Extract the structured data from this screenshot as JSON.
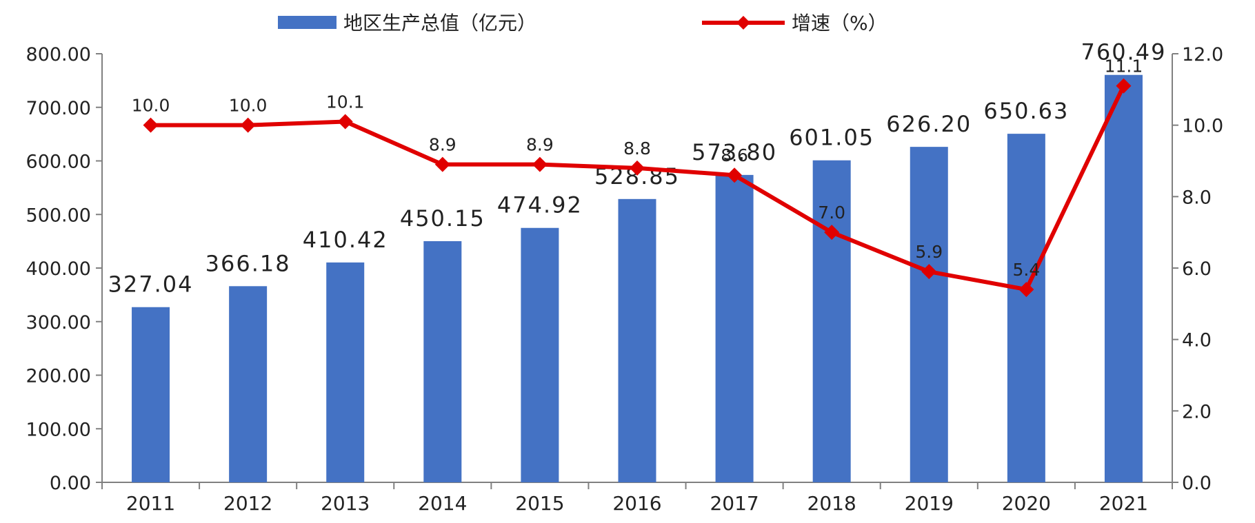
{
  "chart_data": {
    "type": "bar",
    "categories": [
      "2011",
      "2012",
      "2013",
      "2014",
      "2015",
      "2016",
      "2017",
      "2018",
      "2019",
      "2020",
      "2021"
    ],
    "series": [
      {
        "name": "地区生产总值（亿元）",
        "type": "bar",
        "axis": "left",
        "color": "#4472C4",
        "values": [
          327.04,
          366.18,
          410.42,
          450.15,
          474.92,
          528.85,
          573.8,
          601.05,
          626.2,
          650.63,
          760.49
        ],
        "labels": [
          "327.04",
          "366.18",
          "410.42",
          "450.15",
          "474.92",
          "528.85",
          "573.80",
          "601.05",
          "626.20",
          "650.63",
          "760.49"
        ]
      },
      {
        "name": "增速（%）",
        "type": "line",
        "axis": "right",
        "color": "#E00000",
        "marker": "diamond",
        "values": [
          10.0,
          10.0,
          10.1,
          8.9,
          8.9,
          8.8,
          8.6,
          7.0,
          5.9,
          5.4,
          11.1
        ],
        "labels": [
          "10.0",
          "10.0",
          "10.1",
          "8.9",
          "8.9",
          "8.8",
          "8.6",
          "7.0",
          "5.9",
          "5.4",
          "11.1"
        ]
      }
    ],
    "y_left": {
      "ylim": [
        0,
        800
      ],
      "ticks": [
        0,
        100,
        200,
        300,
        400,
        500,
        600,
        700,
        800
      ],
      "tick_labels": [
        "0.00",
        "100.00",
        "200.00",
        "300.00",
        "400.00",
        "500.00",
        "600.00",
        "700.00",
        "800.00"
      ]
    },
    "y_right": {
      "ylim": [
        0,
        12
      ],
      "ticks": [
        0,
        2,
        4,
        6,
        8,
        10,
        12
      ],
      "tick_labels": [
        "0.0",
        "2.0",
        "4.0",
        "6.0",
        "8.0",
        "10.0",
        "12.0"
      ]
    },
    "legend_position": "top-center",
    "grid": false,
    "axis_color": "#808080",
    "text_color": "#222222"
  }
}
